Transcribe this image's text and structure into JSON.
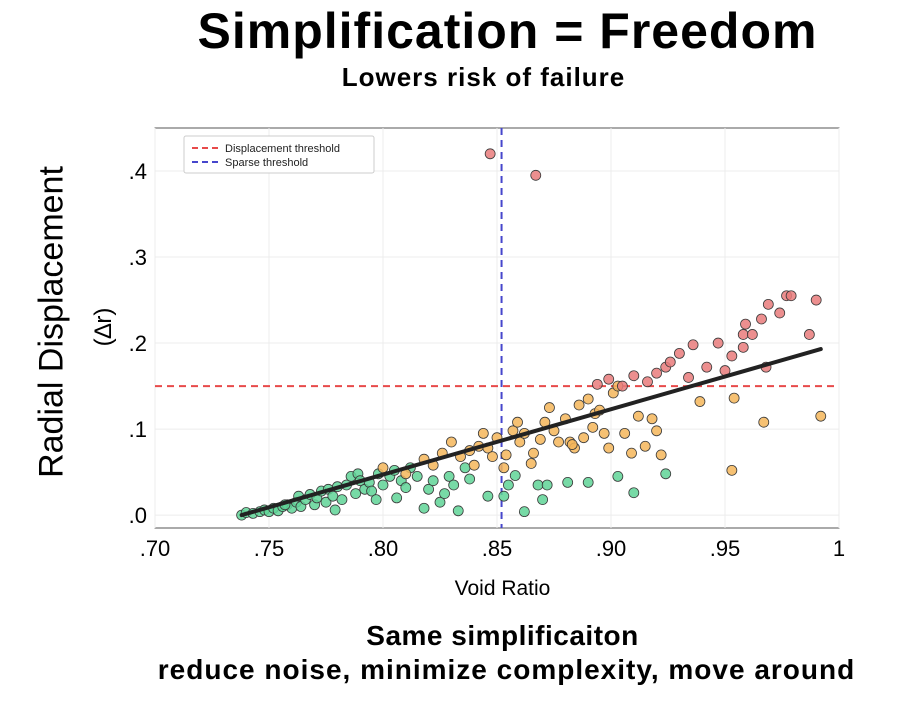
{
  "header": {
    "title": "Simplification = Freedom",
    "subtitle": "Lowers risk of failure"
  },
  "footer": {
    "line1": "Same simplificaiton",
    "line2": "reduce noise, minimize complexity, move around"
  },
  "colors": {
    "green": "#5fd497",
    "orange": "#f5b65a",
    "red": "#e97b7b",
    "trend": "#222222",
    "displacement_threshold": "#e84a4a",
    "sparse_threshold": "#4646cc"
  },
  "chart_data": {
    "type": "scatter",
    "ylabel": "Radial Displacement",
    "ylabel_sub": "(∆r)",
    "xlabel": "Void Ratio",
    "xlim": [
      0.7,
      1.0
    ],
    "ylim": [
      -0.015,
      0.45
    ],
    "x_ticks": [
      0.7,
      0.75,
      0.8,
      0.85,
      0.9,
      0.95,
      1.0
    ],
    "x_tick_labels": [
      ".70",
      ".75",
      ".80",
      ".85",
      ".90",
      ".95",
      "1"
    ],
    "y_ticks": [
      0.0,
      0.1,
      0.2,
      0.3,
      0.4
    ],
    "y_tick_labels": [
      ".0",
      ".1",
      ".2",
      ".3",
      ".4"
    ],
    "grid": true,
    "legend_position": "top-left",
    "thresholds": [
      {
        "name": "Displacement threshold",
        "axis": "y",
        "value": 0.15
      },
      {
        "name": "Sparse threshold",
        "axis": "x",
        "value": 0.852
      }
    ],
    "trend_line": {
      "x": [
        0.738,
        0.992
      ],
      "y": [
        0.0,
        0.193
      ]
    },
    "series": [
      {
        "color_key": "green",
        "points": [
          [
            0.738,
            0.0
          ],
          [
            0.74,
            0.003
          ],
          [
            0.743,
            0.002
          ],
          [
            0.746,
            0.004
          ],
          [
            0.748,
            0.006
          ],
          [
            0.75,
            0.004
          ],
          [
            0.752,
            0.008
          ],
          [
            0.754,
            0.005
          ],
          [
            0.756,
            0.01
          ],
          [
            0.758,
            0.012
          ],
          [
            0.76,
            0.008
          ],
          [
            0.762,
            0.015
          ],
          [
            0.763,
            0.022
          ],
          [
            0.764,
            0.01
          ],
          [
            0.766,
            0.018
          ],
          [
            0.768,
            0.024
          ],
          [
            0.77,
            0.012
          ],
          [
            0.771,
            0.02
          ],
          [
            0.773,
            0.028
          ],
          [
            0.775,
            0.015
          ],
          [
            0.776,
            0.03
          ],
          [
            0.778,
            0.022
          ],
          [
            0.78,
            0.033
          ],
          [
            0.782,
            0.018
          ],
          [
            0.784,
            0.035
          ],
          [
            0.786,
            0.045
          ],
          [
            0.788,
            0.025
          ],
          [
            0.789,
            0.048
          ],
          [
            0.79,
            0.04
          ],
          [
            0.792,
            0.03
          ],
          [
            0.794,
            0.038
          ],
          [
            0.795,
            0.028
          ],
          [
            0.798,
            0.048
          ],
          [
            0.8,
            0.035
          ],
          [
            0.803,
            0.045
          ],
          [
            0.805,
            0.052
          ],
          [
            0.808,
            0.04
          ],
          [
            0.81,
            0.032
          ],
          [
            0.812,
            0.055
          ],
          [
            0.815,
            0.045
          ],
          [
            0.818,
            0.008
          ],
          [
            0.82,
            0.03
          ],
          [
            0.822,
            0.04
          ],
          [
            0.825,
            0.015
          ],
          [
            0.827,
            0.025
          ],
          [
            0.829,
            0.045
          ],
          [
            0.831,
            0.035
          ],
          [
            0.833,
            0.005
          ],
          [
            0.836,
            0.055
          ],
          [
            0.838,
            0.042
          ],
          [
            0.846,
            0.022
          ],
          [
            0.853,
            0.022
          ],
          [
            0.855,
            0.035
          ],
          [
            0.858,
            0.046
          ],
          [
            0.862,
            0.004
          ],
          [
            0.868,
            0.035
          ],
          [
            0.87,
            0.018
          ],
          [
            0.872,
            0.035
          ],
          [
            0.881,
            0.038
          ],
          [
            0.89,
            0.038
          ],
          [
            0.903,
            0.045
          ],
          [
            0.91,
            0.026
          ],
          [
            0.924,
            0.048
          ],
          [
            0.797,
            0.018
          ],
          [
            0.806,
            0.02
          ],
          [
            0.779,
            0.006
          ],
          [
            0.757,
            0.012
          ]
        ]
      },
      {
        "color_key": "orange",
        "points": [
          [
            0.8,
            0.055
          ],
          [
            0.81,
            0.048
          ],
          [
            0.818,
            0.065
          ],
          [
            0.822,
            0.058
          ],
          [
            0.826,
            0.072
          ],
          [
            0.83,
            0.085
          ],
          [
            0.834,
            0.068
          ],
          [
            0.838,
            0.075
          ],
          [
            0.84,
            0.058
          ],
          [
            0.842,
            0.08
          ],
          [
            0.844,
            0.095
          ],
          [
            0.846,
            0.078
          ],
          [
            0.848,
            0.068
          ],
          [
            0.85,
            0.09
          ],
          [
            0.853,
            0.055
          ],
          [
            0.854,
            0.07
          ],
          [
            0.857,
            0.098
          ],
          [
            0.859,
            0.108
          ],
          [
            0.86,
            0.085
          ],
          [
            0.862,
            0.095
          ],
          [
            0.866,
            0.072
          ],
          [
            0.869,
            0.088
          ],
          [
            0.871,
            0.108
          ],
          [
            0.873,
            0.125
          ],
          [
            0.875,
            0.098
          ],
          [
            0.877,
            0.085
          ],
          [
            0.88,
            0.112
          ],
          [
            0.882,
            0.085
          ],
          [
            0.884,
            0.078
          ],
          [
            0.886,
            0.128
          ],
          [
            0.888,
            0.09
          ],
          [
            0.89,
            0.135
          ],
          [
            0.892,
            0.102
          ],
          [
            0.893,
            0.118
          ],
          [
            0.895,
            0.122
          ],
          [
            0.897,
            0.095
          ],
          [
            0.899,
            0.078
          ],
          [
            0.901,
            0.142
          ],
          [
            0.903,
            0.15
          ],
          [
            0.906,
            0.095
          ],
          [
            0.909,
            0.072
          ],
          [
            0.912,
            0.115
          ],
          [
            0.915,
            0.08
          ],
          [
            0.918,
            0.112
          ],
          [
            0.92,
            0.098
          ],
          [
            0.922,
            0.07
          ],
          [
            0.939,
            0.132
          ],
          [
            0.953,
            0.052
          ],
          [
            0.954,
            0.136
          ],
          [
            0.967,
            0.108
          ],
          [
            0.992,
            0.115
          ],
          [
            0.883,
            0.082
          ],
          [
            0.865,
            0.06
          ]
        ]
      },
      {
        "color_key": "red",
        "points": [
          [
            0.847,
            0.42
          ],
          [
            0.867,
            0.395
          ],
          [
            0.894,
            0.152
          ],
          [
            0.899,
            0.158
          ],
          [
            0.905,
            0.15
          ],
          [
            0.91,
            0.162
          ],
          [
            0.916,
            0.155
          ],
          [
            0.92,
            0.165
          ],
          [
            0.924,
            0.172
          ],
          [
            0.926,
            0.178
          ],
          [
            0.93,
            0.188
          ],
          [
            0.934,
            0.16
          ],
          [
            0.936,
            0.198
          ],
          [
            0.942,
            0.172
          ],
          [
            0.947,
            0.2
          ],
          [
            0.95,
            0.168
          ],
          [
            0.953,
            0.185
          ],
          [
            0.958,
            0.195
          ],
          [
            0.958,
            0.21
          ],
          [
            0.959,
            0.222
          ],
          [
            0.962,
            0.21
          ],
          [
            0.966,
            0.228
          ],
          [
            0.968,
            0.172
          ],
          [
            0.969,
            0.245
          ],
          [
            0.974,
            0.235
          ],
          [
            0.977,
            0.255
          ],
          [
            0.979,
            0.255
          ],
          [
            0.987,
            0.21
          ],
          [
            0.99,
            0.25
          ]
        ]
      }
    ]
  }
}
